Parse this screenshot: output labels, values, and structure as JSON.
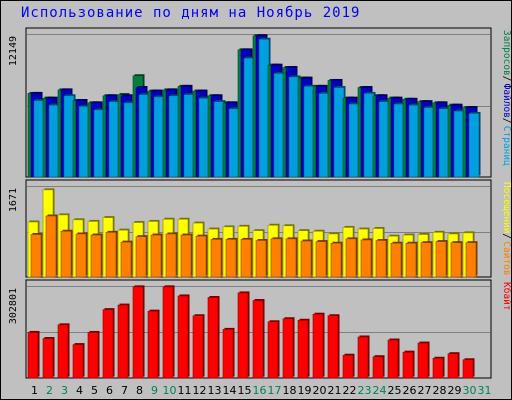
{
  "title": "Использование по дням на Ноябрь 2019",
  "chart_data": {
    "type": "bar",
    "categories": [
      "1",
      "2",
      "3",
      "4",
      "5",
      "6",
      "7",
      "8",
      "9",
      "10",
      "11",
      "12",
      "13",
      "14",
      "15",
      "16",
      "17",
      "18",
      "19",
      "20",
      "21",
      "22",
      "23",
      "24",
      "25",
      "26",
      "27",
      "28",
      "29",
      "30",
      "31"
    ],
    "weekend_days": [
      "2",
      "3",
      "9",
      "10",
      "16",
      "17",
      "23",
      "24",
      "30",
      "31"
    ],
    "panels": [
      {
        "name": "top",
        "ymax_label": "12149",
        "ymax": 12149,
        "legend": [
          {
            "text": "Запросов",
            "color": "#008040"
          },
          {
            "text": "Файлов",
            "color": "#0000c0"
          },
          {
            "text": "Страниц",
            "color": "#00a0e0"
          }
        ],
        "series": [
          {
            "name": "Запросов",
            "color": "#008040",
            "values": [
              7100,
              6700,
              7400,
              6500,
              6300,
              6900,
              7000,
              8600,
              7300,
              7400,
              7700,
              7300,
              6900,
              6300,
              10800,
              12000,
              9500,
              9300,
              8400,
              7700,
              8200,
              6700,
              7600,
              6900,
              6700,
              6600,
              6400,
              6300,
              6100,
              5900,
              0
            ]
          },
          {
            "name": "Файлов",
            "color": "#0000c0",
            "values": [
              7100,
              6700,
              7400,
              6500,
              6300,
              6900,
              6900,
              7600,
              7300,
              7400,
              7700,
              7300,
              6900,
              6300,
              10800,
              12000,
              9500,
              9300,
              8400,
              7700,
              8200,
              6700,
              7600,
              6900,
              6700,
              6600,
              6400,
              6300,
              6100,
              5900,
              0
            ]
          },
          {
            "name": "Страниц",
            "color": "#00a0e0",
            "values": [
              6500,
              6100,
              6900,
              6000,
              5700,
              6400,
              6300,
              7000,
              6800,
              6900,
              7000,
              6700,
              6400,
              5800,
              10100,
              11700,
              8800,
              8500,
              7700,
              7100,
              7600,
              6200,
              7100,
              6400,
              6200,
              6100,
              5900,
              5800,
              5600,
              5400,
              0
            ]
          }
        ]
      },
      {
        "name": "middle",
        "ymax_label": "1671",
        "ymax": 1671,
        "legend": [
          {
            "text": "Посещений",
            "color": "#ffff00"
          },
          {
            "text": "Сайтов",
            "color": "#ff8000"
          }
        ],
        "series": [
          {
            "name": "Посещений",
            "color": "#ffff00",
            "values": [
              1010,
              1600,
              1140,
              1050,
              1020,
              1090,
              860,
              1000,
              1020,
              1060,
              1060,
              990,
              880,
              920,
              930,
              850,
              950,
              940,
              850,
              840,
              790,
              910,
              880,
              890,
              750,
              770,
              780,
              820,
              790,
              810,
              0
            ]
          },
          {
            "name": "Сайтов",
            "color": "#ff8000",
            "values": [
              780,
              1120,
              840,
              790,
              770,
              820,
              640,
              740,
              770,
              790,
              770,
              750,
              690,
              690,
              690,
              670,
              700,
              700,
              660,
              650,
              620,
              700,
              680,
              670,
              620,
              620,
              630,
              650,
              630,
              630,
              0
            ]
          }
        ]
      },
      {
        "name": "bottom",
        "ymax_label": "302801",
        "ymax": 302801,
        "legend": [
          {
            "text": "Кбайт",
            "color": "#ff0000"
          }
        ],
        "series": [
          {
            "name": "Кбайт",
            "color": "#ff0000",
            "values": [
              150000,
              130000,
              175000,
              110000,
              150000,
              225000,
              240000,
              300000,
              220000,
              300000,
              270000,
              205000,
              265000,
              160000,
              280000,
              255000,
              185000,
              195000,
              190000,
              210000,
              205000,
              75000,
              135000,
              70000,
              125000,
              85000,
              115000,
              65000,
              80000,
              60000,
              0
            ]
          }
        ]
      }
    ]
  }
}
